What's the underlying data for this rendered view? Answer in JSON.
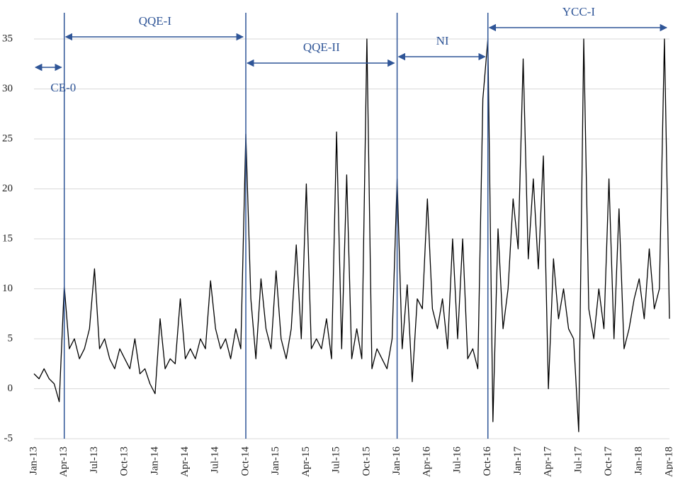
{
  "chart_data": {
    "type": "line",
    "categories": [
      "Jan-13",
      null,
      null,
      null,
      null,
      null,
      "Apr-13",
      null,
      null,
      null,
      null,
      null,
      "Jul-13",
      null,
      null,
      null,
      null,
      null,
      "Oct-13",
      null,
      null,
      null,
      null,
      null,
      "Jan-14",
      null,
      null,
      null,
      null,
      null,
      "Apr-14",
      null,
      null,
      null,
      null,
      null,
      "Jul-14",
      null,
      null,
      null,
      null,
      null,
      "Oct-14",
      null,
      null,
      null,
      null,
      null,
      "Jan-15",
      null,
      null,
      null,
      null,
      null,
      "Apr-15",
      null,
      null,
      null,
      null,
      null,
      "Jul-15",
      null,
      null,
      null,
      null,
      null,
      "Oct-15",
      null,
      null,
      null,
      null,
      null,
      "Jan-16",
      null,
      null,
      null,
      null,
      null,
      "Apr-16",
      null,
      null,
      null,
      null,
      null,
      "Jul-16",
      null,
      null,
      null,
      null,
      null,
      "Oct-16",
      null,
      null,
      null,
      null,
      null,
      "Jan-17",
      null,
      null,
      null,
      null,
      null,
      "Apr-17",
      null,
      null,
      null,
      null,
      null,
      "Jul-17",
      null,
      null,
      null,
      null,
      null,
      "Oct-17",
      null,
      null,
      null,
      null,
      null,
      "Jan-18",
      null,
      null,
      null,
      null,
      null,
      "Apr-18"
    ],
    "series": [
      {
        "color": "#000000",
        "values": [
          1.5,
          1.0,
          2,
          1,
          0.5,
          -1.3,
          10.3,
          4,
          5,
          3,
          4,
          6,
          12,
          4,
          5,
          3,
          2,
          4,
          3,
          2,
          5,
          1.5,
          2,
          0.5,
          -0.5,
          7,
          2,
          3,
          2.5,
          9,
          3,
          4,
          3,
          5,
          4,
          10.8,
          6,
          4,
          5,
          3,
          6,
          4,
          25.5,
          9,
          3,
          11,
          6,
          4,
          11.8,
          5,
          3,
          6,
          14.4,
          5,
          20.5,
          4,
          5,
          4,
          7,
          3,
          25.7,
          4,
          21.4,
          3,
          6,
          3,
          35,
          2,
          4,
          3,
          2,
          5,
          21,
          4,
          10.4,
          0.7,
          9,
          8,
          19,
          8,
          6,
          9,
          4,
          15,
          5,
          15,
          3,
          4,
          2,
          29,
          35,
          -3.3,
          16,
          6,
          10,
          19,
          14,
          33,
          13,
          21,
          12,
          23.3,
          0,
          13,
          7,
          10,
          6,
          5,
          -4.3,
          35,
          8,
          5,
          10,
          6,
          21,
          5,
          18,
          4,
          6,
          9,
          11,
          7,
          14,
          8,
          10,
          35,
          7
        ]
      }
    ],
    "ylim": [
      -5,
      35
    ],
    "yticks": [
      -5,
      0,
      5,
      10,
      15,
      20,
      25,
      30,
      35
    ],
    "grid": true,
    "annotations": [
      {
        "text": "CE-0",
        "start": "Jan-13",
        "end": "Apr-13",
        "color": "#2f5597"
      },
      {
        "text": "QQE-I",
        "start": "Apr-13",
        "end": "Oct-14",
        "color": "#2f5597"
      },
      {
        "text": "QQE-II",
        "start": "Oct-14",
        "end": "Jan-16",
        "color": "#2f5597"
      },
      {
        "text": "NI",
        "start": "Jan-16",
        "end": "Oct-16",
        "color": "#2f5597"
      },
      {
        "text": "YCC-I",
        "start": "Oct-16",
        "end": "Apr-18",
        "color": "#2f5597"
      }
    ]
  }
}
